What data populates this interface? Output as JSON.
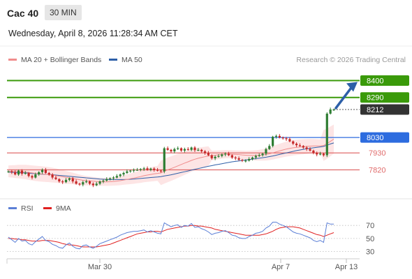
{
  "header": {
    "symbol": "Cac 40",
    "timeframe": "30 MIN"
  },
  "datetime": "Wednesday, April 8, 2026 11:28:34 AM CET",
  "credit": "Research © 2026 Trading Central",
  "legend": [
    {
      "label": "MA 20 + Bollinger Bands",
      "color": "#f08c8c"
    },
    {
      "label": "MA 50",
      "color": "#2d5fa8"
    }
  ],
  "rsi_legend": [
    {
      "label": "RSI",
      "color": "#5b7fd6"
    },
    {
      "label": "9MA",
      "color": "#e02020"
    }
  ],
  "colors": {
    "target": "#3a9a0a",
    "pivot": "#2d6cdf",
    "support": "#e06b6b",
    "current": "#333333",
    "up_candle": "#2e7d32",
    "down_candle": "#c62828",
    "band_fill": "#fde0e0",
    "arrow": "#2d5fa8"
  },
  "chart_data": [
    {
      "type": "line",
      "title": "Cac 40",
      "timeframe": "30 MIN",
      "x_ticks": [
        "Mar 30",
        "Apr 7",
        "Apr 13"
      ],
      "y_range": [
        7700,
        8470
      ],
      "grid": false,
      "legend_position": "top-left",
      "levels": [
        {
          "value": 8400,
          "label": "8400",
          "role": "target"
        },
        {
          "value": 8290,
          "label": "8290",
          "role": "target"
        },
        {
          "value": 8212,
          "label": "8212",
          "role": "current"
        },
        {
          "value": 8030,
          "label": "8030",
          "role": "pivot"
        },
        {
          "value": 7930,
          "label": "7930",
          "role": "support"
        },
        {
          "value": 7820,
          "label": "7820",
          "role": "support"
        }
      ],
      "close": [
        7810,
        7805,
        7790,
        7815,
        7795,
        7800,
        7780,
        7770,
        7790,
        7805,
        7820,
        7800,
        7790,
        7770,
        7760,
        7745,
        7740,
        7755,
        7765,
        7745,
        7730,
        7725,
        7740,
        7745,
        7730,
        7720,
        7730,
        7745,
        7750,
        7760,
        7765,
        7770,
        7780,
        7790,
        7800,
        7810,
        7815,
        7820,
        7820,
        7825,
        7830,
        7820,
        7828,
        7820,
        7815,
        7810,
        7960,
        7950,
        7940,
        7955,
        7960,
        7945,
        7955,
        7950,
        7965,
        7948,
        7950,
        7940,
        7930,
        7915,
        7895,
        7905,
        7910,
        7920,
        7925,
        7915,
        7900,
        7895,
        7885,
        7880,
        7880,
        7890,
        7900,
        7910,
        7915,
        7925,
        7955,
        7975,
        8035,
        8040,
        8030,
        8025,
        8020,
        8005,
        7990,
        7980,
        7975,
        7965,
        7955,
        7945,
        7930,
        7920,
        7925,
        7915,
        8185,
        8212,
        8212
      ],
      "series": [
        {
          "name": "MA 20 + Bollinger Bands",
          "values": [
            7810,
            7810,
            7809,
            7809,
            7807,
            7806,
            7803,
            7800,
            7797,
            7795,
            7793,
            7791,
            7789,
            7786,
            7783,
            7779,
            7775,
            7771,
            7768,
            7764,
            7760,
            7756,
            7752,
            7750,
            7748,
            7746,
            7744,
            7743,
            7742,
            7742,
            7743,
            7745,
            7747,
            7750,
            7754,
            7758,
            7762,
            7766,
            7771,
            7776,
            7782,
            7786,
            7790,
            7794,
            7797,
            7800,
            7810,
            7820,
            7828,
            7837,
            7846,
            7855,
            7864,
            7872,
            7881,
            7889,
            7895,
            7900,
            7905,
            7910,
            7913,
            7915,
            7918,
            7920,
            7922,
            7922,
            7921,
            7920,
            7919,
            7917,
            7915,
            7914,
            7914,
            7914,
            7915,
            7917,
            7920,
            7924,
            7930,
            7937,
            7943,
            7949,
            7955,
            7959,
            7963,
            7966,
            7968,
            7970,
            7972,
            7974,
            7975,
            7975,
            7976,
            7978,
            7990,
            8005,
            8020
          ]
        },
        {
          "name": "MA 50",
          "values": [
            7805,
            7804,
            7803,
            7802,
            7801,
            7800,
            7799,
            7797,
            7795,
            7793,
            7792,
            7791,
            7790,
            7788,
            7786,
            7784,
            7782,
            7780,
            7778,
            7776,
            7774,
            7772,
            7770,
            7768,
            7766,
            7764,
            7762,
            7760,
            7759,
            7758,
            7757,
            7757,
            7757,
            7757,
            7757,
            7758,
            7759,
            7760,
            7762,
            7764,
            7766,
            7768,
            7770,
            7772,
            7774,
            7776,
            7780,
            7784,
            7788,
            7793,
            7798,
            7803,
            7808,
            7813,
            7818,
            7823,
            7828,
            7833,
            7838,
            7843,
            7847,
            7852,
            7856,
            7860,
            7864,
            7868,
            7872,
            7875,
            7878,
            7881,
            7884,
            7887,
            7890,
            7893,
            7896,
            7899,
            7902,
            7906,
            7910,
            7915,
            7920,
            7925,
            7930,
            7935,
            7940,
            7945,
            7949,
            7953,
            7957,
            7960,
            7963,
            7966,
            7969,
            7972,
            7980,
            7988,
            7995
          ]
        }
      ]
    },
    {
      "type": "line",
      "title": "RSI",
      "y_ticks": [
        70,
        50,
        30
      ],
      "y_range": [
        22,
        82
      ],
      "series": [
        {
          "name": "RSI",
          "values": [
            52,
            48,
            44,
            50,
            46,
            47,
            42,
            40,
            45,
            49,
            53,
            47,
            45,
            41,
            39,
            36,
            35,
            40,
            43,
            38,
            35,
            34,
            39,
            40,
            37,
            35,
            38,
            42,
            44,
            46,
            48,
            50,
            52,
            55,
            57,
            59,
            60,
            61,
            61,
            62,
            63,
            60,
            62,
            60,
            58,
            57,
            74,
            71,
            68,
            70,
            71,
            67,
            70,
            69,
            73,
            67,
            68,
            65,
            63,
            60,
            56,
            58,
            59,
            61,
            62,
            59,
            55,
            54,
            51,
            50,
            50,
            53,
            55,
            58,
            59,
            61,
            66,
            69,
            75,
            75,
            72,
            70,
            68,
            64,
            60,
            58,
            57,
            55,
            53,
            51,
            47,
            45,
            47,
            44,
            74,
            72,
            72
          ]
        },
        {
          "name": "9MA",
          "values": [
            50,
            50,
            49,
            49,
            48,
            48,
            47,
            46,
            46,
            46,
            47,
            47,
            47,
            46,
            45,
            44,
            42,
            41,
            40,
            40,
            39,
            38,
            37,
            37,
            37,
            37,
            37,
            38,
            39,
            40,
            41,
            43,
            45,
            47,
            49,
            51,
            53,
            55,
            57,
            58,
            59,
            60,
            60,
            61,
            61,
            60,
            62,
            64,
            65,
            66,
            67,
            68,
            69,
            69,
            70,
            70,
            69,
            69,
            68,
            67,
            66,
            64,
            63,
            62,
            61,
            60,
            59,
            58,
            57,
            56,
            55,
            55,
            55,
            55,
            55,
            56,
            57,
            59,
            61,
            64,
            66,
            67,
            68,
            68,
            68,
            67,
            66,
            64,
            62,
            60,
            58,
            56,
            55,
            53,
            55,
            57,
            59
          ]
        }
      ]
    }
  ]
}
